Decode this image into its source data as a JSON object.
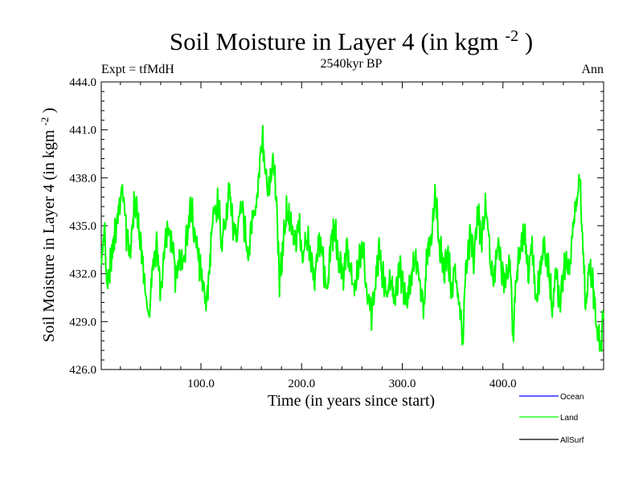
{
  "chart_data": {
    "type": "line",
    "title": "Soil Moisture in Layer 4 (in kgm",
    "title_sup": "-2",
    "title_end": ")",
    "subtitle": "2540kyr BP",
    "left_label": "Expt = tfMdH",
    "right_label": "Ann",
    "xlabel": "Time (in years since start)",
    "ylabel": "Soil Moisture in Layer 4 (in kgm",
    "ylabel_sup": "-2",
    "ylabel_end": ")",
    "xlim": [
      1,
      500
    ],
    "ylim": [
      426.0,
      444.0
    ],
    "xticks": [
      100,
      200,
      300,
      400
    ],
    "xtick_labels": [
      "100.0",
      "200.0",
      "300.0",
      "400.0"
    ],
    "yticks": [
      426,
      429,
      432,
      435,
      438,
      441,
      444
    ],
    "ytick_labels": [
      "426.0",
      "429.0",
      "432.0",
      "435.0",
      "438.0",
      "441.0",
      "444.0"
    ],
    "anchors": [
      [
        1,
        432.6
      ],
      [
        4,
        434.8
      ],
      [
        7,
        431.0
      ],
      [
        10,
        432.8
      ],
      [
        14,
        434.2
      ],
      [
        18,
        436.0
      ],
      [
        22,
        437.4
      ],
      [
        26,
        434.3
      ],
      [
        30,
        433.1
      ],
      [
        34,
        436.6
      ],
      [
        38,
        435.0
      ],
      [
        41,
        433.3
      ],
      [
        45,
        431.0
      ],
      [
        48,
        429.1
      ],
      [
        52,
        432.7
      ],
      [
        56,
        433.6
      ],
      [
        60,
        431.1
      ],
      [
        64,
        433.8
      ],
      [
        68,
        435.1
      ],
      [
        72,
        433.9
      ],
      [
        75,
        431.6
      ],
      [
        79,
        433.2
      ],
      [
        83,
        432.3
      ],
      [
        87,
        435.0
      ],
      [
        90,
        436.4
      ],
      [
        94,
        434.2
      ],
      [
        98,
        432.7
      ],
      [
        102,
        431.6
      ],
      [
        105,
        429.6
      ],
      [
        109,
        433.0
      ],
      [
        113,
        435.8
      ],
      [
        117,
        436.7
      ],
      [
        121,
        434.0
      ],
      [
        125,
        435.6
      ],
      [
        128,
        437.4
      ],
      [
        132,
        435.1
      ],
      [
        136,
        434.2
      ],
      [
        140,
        436.6
      ],
      [
        144,
        434.6
      ],
      [
        147,
        433.2
      ],
      [
        151,
        435.7
      ],
      [
        155,
        436.3
      ],
      [
        158,
        438.4
      ],
      [
        161,
        440.8
      ],
      [
        164,
        438.1
      ],
      [
        168,
        437.4
      ],
      [
        172,
        439.2
      ],
      [
        175,
        436.4
      ],
      [
        178,
        431.6
      ],
      [
        181,
        433.5
      ],
      [
        185,
        436.1
      ],
      [
        189,
        435.0
      ],
      [
        193,
        434.0
      ],
      [
        197,
        435.2
      ],
      [
        201,
        433.3
      ],
      [
        205,
        434.7
      ],
      [
        209,
        433.1
      ],
      [
        213,
        431.6
      ],
      [
        217,
        434.6
      ],
      [
        221,
        433.0
      ],
      [
        225,
        430.9
      ],
      [
        229,
        433.8
      ],
      [
        233,
        435.1
      ],
      [
        237,
        432.9
      ],
      [
        241,
        431.9
      ],
      [
        245,
        433.7
      ],
      [
        249,
        432.3
      ],
      [
        253,
        431.1
      ],
      [
        257,
        432.8
      ],
      [
        261,
        433.4
      ],
      [
        265,
        431.1
      ],
      [
        269,
        429.2
      ],
      [
        273,
        431.6
      ],
      [
        277,
        433.2
      ],
      [
        281,
        431.9
      ],
      [
        285,
        430.4
      ],
      [
        289,
        431.5
      ],
      [
        293,
        430.3
      ],
      [
        297,
        432.4
      ],
      [
        301,
        431.1
      ],
      [
        305,
        430.2
      ],
      [
        309,
        432.0
      ],
      [
        313,
        432.9
      ],
      [
        317,
        431.1
      ],
      [
        321,
        429.8
      ],
      [
        325,
        433.6
      ],
      [
        329,
        434.8
      ],
      [
        333,
        436.9
      ],
      [
        337,
        434.0
      ],
      [
        341,
        432.3
      ],
      [
        345,
        433.5
      ],
      [
        349,
        431.1
      ],
      [
        353,
        432.2
      ],
      [
        357,
        429.8
      ],
      [
        360,
        428.1
      ],
      [
        363,
        431.6
      ],
      [
        367,
        434.4
      ],
      [
        371,
        433.0
      ],
      [
        375,
        435.7
      ],
      [
        379,
        434.2
      ],
      [
        383,
        436.3
      ],
      [
        387,
        433.1
      ],
      [
        391,
        431.3
      ],
      [
        395,
        433.6
      ],
      [
        399,
        432.0
      ],
      [
        403,
        431.5
      ],
      [
        407,
        432.7
      ],
      [
        410,
        428.2
      ],
      [
        413,
        431.6
      ],
      [
        417,
        433.4
      ],
      [
        421,
        434.7
      ],
      [
        425,
        432.1
      ],
      [
        429,
        433.9
      ],
      [
        433,
        430.1
      ],
      [
        437,
        432.2
      ],
      [
        441,
        434.1
      ],
      [
        445,
        432.6
      ],
      [
        449,
        430.0
      ],
      [
        453,
        431.7
      ],
      [
        457,
        430.2
      ],
      [
        461,
        432.9
      ],
      [
        465,
        432.1
      ],
      [
        469,
        434.2
      ],
      [
        473,
        436.1
      ],
      [
        476,
        438.7
      ],
      [
        479,
        434.1
      ],
      [
        482,
        430.2
      ],
      [
        486,
        432.4
      ],
      [
        490,
        430.8
      ],
      [
        494,
        428.6
      ],
      [
        497,
        427.5
      ],
      [
        500,
        429.2
      ]
    ],
    "series": [
      {
        "name": "Ocean",
        "color": "#0000ff",
        "values": []
      },
      {
        "name": "Land",
        "color": "#00ff00",
        "values": []
      },
      {
        "name": "AllSurf",
        "color": "#000000",
        "values": []
      }
    ]
  }
}
